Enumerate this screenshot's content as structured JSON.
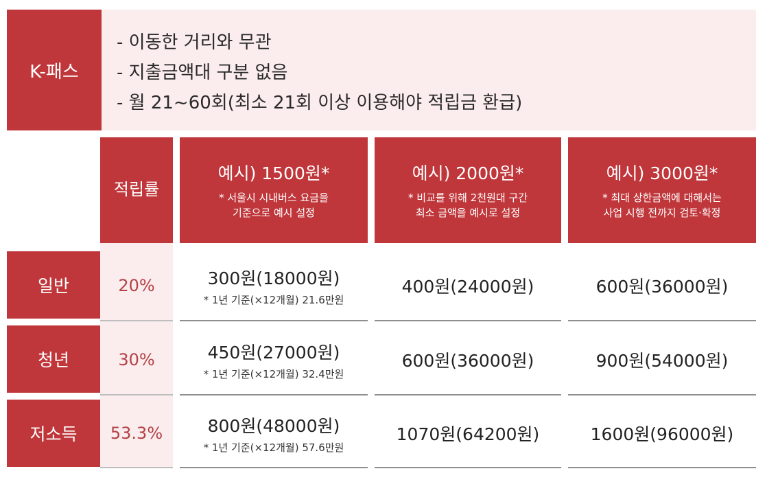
{
  "kpass": {
    "label": "K-패스",
    "lines": [
      "- 이동한 거리와 무관",
      "- 지출금액대 구분 없음",
      "- 월 21~60회(최소 21회 이상 이용해야 적립금 환급)"
    ]
  },
  "header": {
    "rate": "적립률",
    "examples": [
      {
        "title": "예시) 1500원*",
        "note1": "* 서울시 시내버스 요금을",
        "note2": "기준으로 예시 설정"
      },
      {
        "title": "예시) 2000원*",
        "note1": "* 비교를 위해 2천원대 구간",
        "note2": "최소 금액을 예시로 설정"
      },
      {
        "title": "예시) 3000원*",
        "note1": "* 최대 상한금액에 대해서는",
        "note2": "사업 시행 전까지 검토·확정"
      }
    ]
  },
  "rows": [
    {
      "label": "일반",
      "rate": "20%",
      "c1": "300원(18000원)",
      "c1_note": "* 1년 기준(×12개월) 21.6만원",
      "c2": "400원(24000원)",
      "c3": "600원(36000원)"
    },
    {
      "label": "청년",
      "rate": "30%",
      "c1": "450원(27000원)",
      "c1_note": "* 1년 기준(×12개월) 32.4만원",
      "c2": "600원(36000원)",
      "c3": "900원(54000원)"
    },
    {
      "label": "저소득",
      "rate": "53.3%",
      "c1": "800원(48000원)",
      "c1_note": "* 1년 기준(×12개월) 57.6만원",
      "c2": "1070원(64200원)",
      "c3": "1600원(96000원)"
    }
  ],
  "colors": {
    "accent_red": "#c0373b",
    "light_pink": "#fbeced",
    "rate_text": "#b34146"
  }
}
